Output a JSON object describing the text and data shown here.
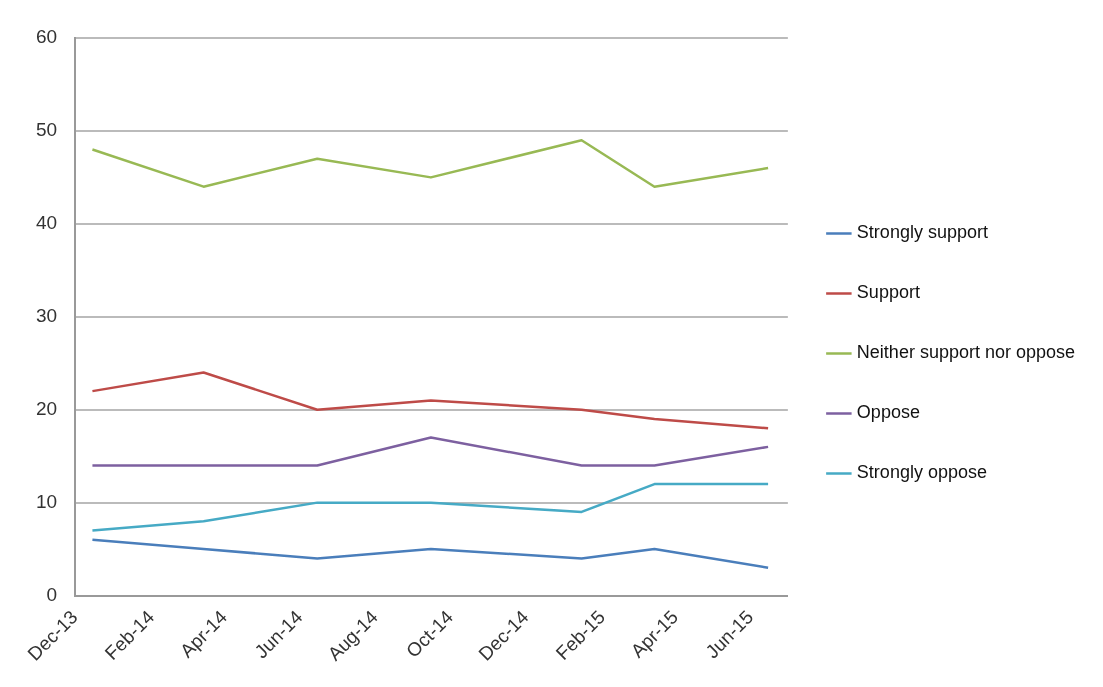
{
  "chart_data": {
    "type": "line",
    "x": [
      "2013-12-15",
      "2014-03-15",
      "2014-06-15",
      "2014-09-15",
      "2015-01-15",
      "2015-03-15",
      "2015-06-15"
    ],
    "series": [
      {
        "name": "Strongly support",
        "color": "#4a7ebb",
        "values": [
          6,
          5,
          4,
          5,
          4,
          5,
          3
        ]
      },
      {
        "name": "Support",
        "color": "#be4b48",
        "values": [
          22,
          24,
          20,
          21,
          20,
          19,
          18
        ]
      },
      {
        "name": "Neither support nor oppose",
        "color": "#98b954",
        "values": [
          48,
          44,
          47,
          45,
          49,
          44,
          46
        ]
      },
      {
        "name": "Oppose",
        "color": "#7d60a0",
        "values": [
          14,
          14,
          14,
          17,
          14,
          14,
          16
        ]
      },
      {
        "name": "Strongly oppose",
        "color": "#46aac5",
        "values": [
          7,
          8,
          10,
          10,
          9,
          12,
          12
        ]
      }
    ],
    "xlim": [
      "2013-12-01",
      "2015-07-01"
    ],
    "xticks": [
      {
        "value": "2013-12-01",
        "label": "Dec-13"
      },
      {
        "value": "2014-02-01",
        "label": "Feb-14"
      },
      {
        "value": "2014-04-01",
        "label": "Apr-14"
      },
      {
        "value": "2014-06-01",
        "label": "Jun-14"
      },
      {
        "value": "2014-08-01",
        "label": "Aug-14"
      },
      {
        "value": "2014-10-01",
        "label": "Oct-14"
      },
      {
        "value": "2014-12-01",
        "label": "Dec-14"
      },
      {
        "value": "2015-02-01",
        "label": "Feb-15"
      },
      {
        "value": "2015-04-01",
        "label": "Apr-15"
      },
      {
        "value": "2015-06-01",
        "label": "Jun-15"
      }
    ],
    "ylim": [
      0,
      60
    ],
    "yticks": [
      0,
      10,
      20,
      30,
      40,
      50,
      60
    ],
    "grid": "y",
    "legend": "right",
    "marker": "none",
    "line_style": "solid"
  }
}
